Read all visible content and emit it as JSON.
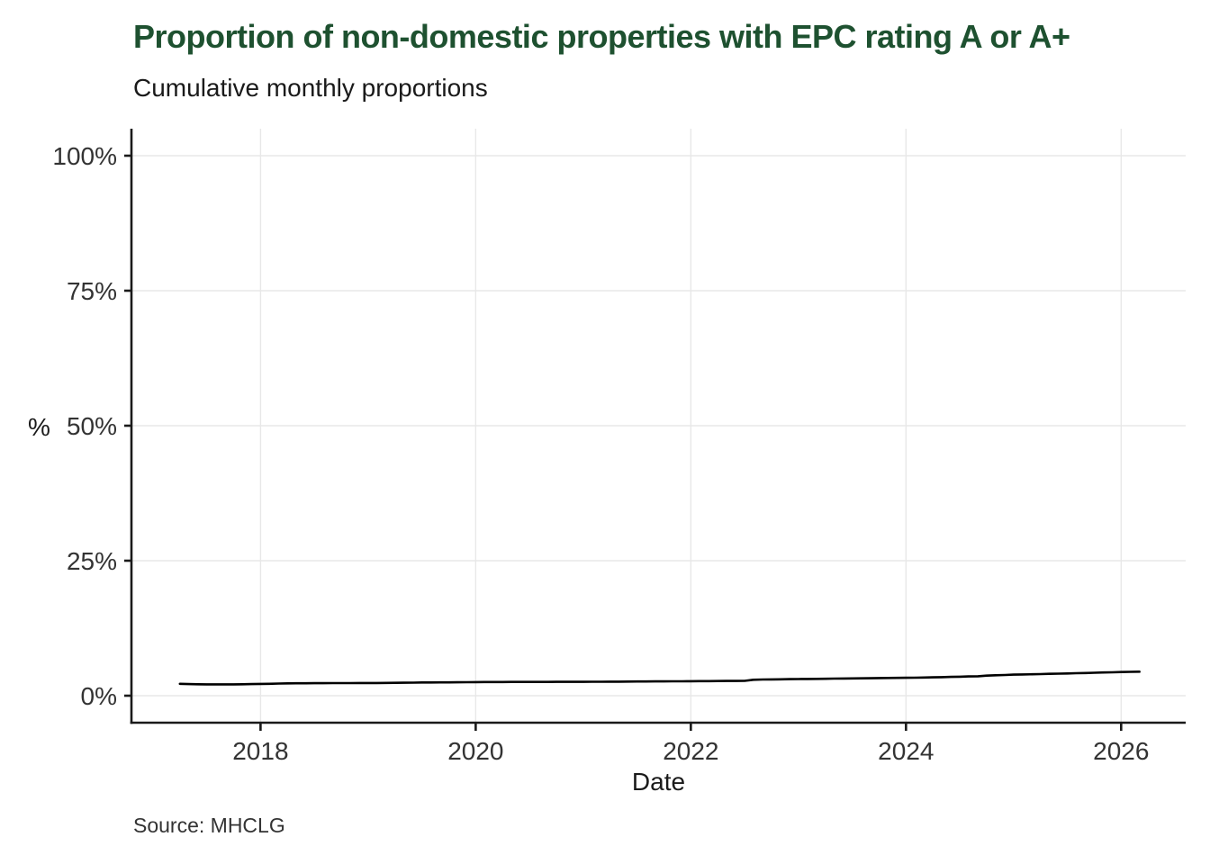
{
  "header": {
    "title": "Proportion of non-domestic properties with EPC rating A or A+",
    "subtitle": "Cumulative monthly proportions"
  },
  "footer": {
    "source": "Source: MHCLG"
  },
  "colors": {
    "title_green": "#1e5130",
    "line": "#000000",
    "grid": "#e8e8e8",
    "axis": "#1a1a1a",
    "tick_text": "#333333"
  },
  "chart_data": {
    "type": "line",
    "title": "Proportion of non-domestic properties with EPC rating A or A+",
    "subtitle": "Cumulative monthly proportions",
    "xlabel": "Date",
    "ylabel": "%",
    "source": "Source: MHCLG",
    "grid": true,
    "legend": false,
    "xlim": [
      2016.8,
      2026.6
    ],
    "ylim": [
      -5,
      105
    ],
    "x_ticks": [
      {
        "value": 2018,
        "label": "2018"
      },
      {
        "value": 2020,
        "label": "2020"
      },
      {
        "value": 2022,
        "label": "2022"
      },
      {
        "value": 2024,
        "label": "2024"
      },
      {
        "value": 2026,
        "label": "2026"
      }
    ],
    "y_ticks": [
      {
        "value": 0,
        "label": "0%"
      },
      {
        "value": 25,
        "label": "25%"
      },
      {
        "value": 50,
        "label": "50%"
      },
      {
        "value": 75,
        "label": "75%"
      },
      {
        "value": 100,
        "label": "100%"
      }
    ],
    "series": [
      {
        "points": [
          [
            2017.25,
            2.2
          ],
          [
            2017.33,
            2.15
          ],
          [
            2017.42,
            2.12
          ],
          [
            2017.5,
            2.1
          ],
          [
            2017.58,
            2.1
          ],
          [
            2017.67,
            2.1
          ],
          [
            2017.75,
            2.1
          ],
          [
            2017.83,
            2.12
          ],
          [
            2017.92,
            2.15
          ],
          [
            2018.0,
            2.18
          ],
          [
            2018.08,
            2.2
          ],
          [
            2018.17,
            2.25
          ],
          [
            2018.25,
            2.28
          ],
          [
            2018.33,
            2.3
          ],
          [
            2018.42,
            2.3
          ],
          [
            2018.5,
            2.32
          ],
          [
            2018.58,
            2.32
          ],
          [
            2018.67,
            2.33
          ],
          [
            2018.75,
            2.33
          ],
          [
            2018.83,
            2.34
          ],
          [
            2018.92,
            2.35
          ],
          [
            2019.0,
            2.35
          ],
          [
            2019.08,
            2.35
          ],
          [
            2019.17,
            2.36
          ],
          [
            2019.25,
            2.38
          ],
          [
            2019.33,
            2.4
          ],
          [
            2019.42,
            2.42
          ],
          [
            2019.5,
            2.45
          ],
          [
            2019.58,
            2.45
          ],
          [
            2019.67,
            2.46
          ],
          [
            2019.75,
            2.47
          ],
          [
            2019.83,
            2.48
          ],
          [
            2019.92,
            2.5
          ],
          [
            2020.0,
            2.52
          ],
          [
            2020.08,
            2.53
          ],
          [
            2020.17,
            2.53
          ],
          [
            2020.25,
            2.54
          ],
          [
            2020.33,
            2.55
          ],
          [
            2020.42,
            2.55
          ],
          [
            2020.5,
            2.55
          ],
          [
            2020.58,
            2.55
          ],
          [
            2020.67,
            2.55
          ],
          [
            2020.75,
            2.56
          ],
          [
            2020.83,
            2.56
          ],
          [
            2020.92,
            2.57
          ],
          [
            2021.0,
            2.57
          ],
          [
            2021.08,
            2.58
          ],
          [
            2021.17,
            2.58
          ],
          [
            2021.25,
            2.6
          ],
          [
            2021.33,
            2.6
          ],
          [
            2021.42,
            2.62
          ],
          [
            2021.5,
            2.63
          ],
          [
            2021.58,
            2.64
          ],
          [
            2021.67,
            2.65
          ],
          [
            2021.75,
            2.65
          ],
          [
            2021.83,
            2.66
          ],
          [
            2021.92,
            2.67
          ],
          [
            2022.0,
            2.68
          ],
          [
            2022.08,
            2.7
          ],
          [
            2022.17,
            2.7
          ],
          [
            2022.25,
            2.72
          ],
          [
            2022.33,
            2.73
          ],
          [
            2022.42,
            2.74
          ],
          [
            2022.5,
            2.75
          ],
          [
            2022.58,
            2.95
          ],
          [
            2022.67,
            3.0
          ],
          [
            2022.75,
            3.02
          ],
          [
            2022.83,
            3.04
          ],
          [
            2022.92,
            3.06
          ],
          [
            2023.0,
            3.08
          ],
          [
            2023.08,
            3.1
          ],
          [
            2023.17,
            3.12
          ],
          [
            2023.25,
            3.14
          ],
          [
            2023.33,
            3.16
          ],
          [
            2023.42,
            3.18
          ],
          [
            2023.5,
            3.2
          ],
          [
            2023.58,
            3.22
          ],
          [
            2023.67,
            3.24
          ],
          [
            2023.75,
            3.26
          ],
          [
            2023.83,
            3.28
          ],
          [
            2023.92,
            3.3
          ],
          [
            2024.0,
            3.32
          ],
          [
            2024.08,
            3.34
          ],
          [
            2024.17,
            3.36
          ],
          [
            2024.25,
            3.4
          ],
          [
            2024.33,
            3.44
          ],
          [
            2024.42,
            3.48
          ],
          [
            2024.5,
            3.52
          ],
          [
            2024.58,
            3.56
          ],
          [
            2024.67,
            3.6
          ],
          [
            2024.75,
            3.72
          ],
          [
            2024.83,
            3.78
          ],
          [
            2024.92,
            3.84
          ],
          [
            2025.0,
            3.9
          ],
          [
            2025.08,
            3.94
          ],
          [
            2025.17,
            3.97
          ],
          [
            2025.25,
            4.0
          ],
          [
            2025.33,
            4.05
          ],
          [
            2025.42,
            4.08
          ],
          [
            2025.5,
            4.12
          ],
          [
            2025.58,
            4.16
          ],
          [
            2025.67,
            4.2
          ],
          [
            2025.75,
            4.25
          ],
          [
            2025.83,
            4.3
          ],
          [
            2025.92,
            4.34
          ],
          [
            2026.0,
            4.38
          ],
          [
            2026.08,
            4.42
          ],
          [
            2026.17,
            4.45
          ]
        ]
      }
    ]
  }
}
